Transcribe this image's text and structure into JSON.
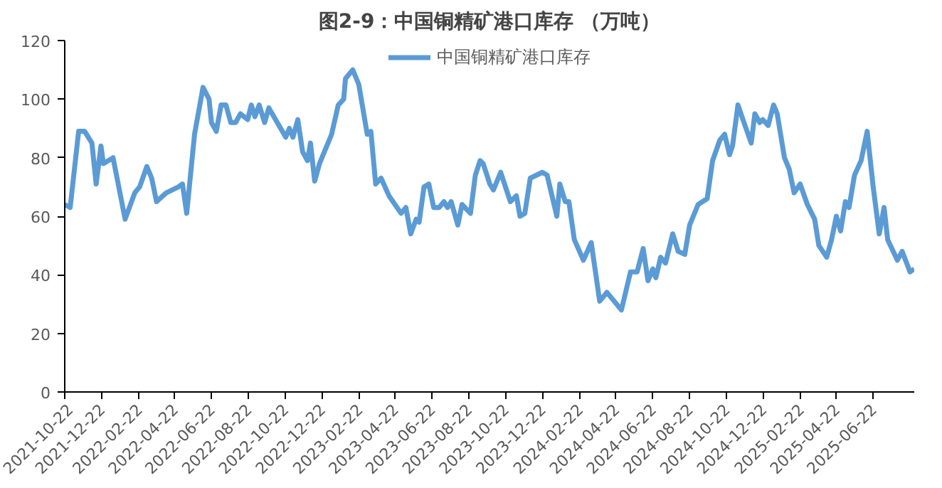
{
  "chart_data": {
    "type": "line",
    "title": "图2-9：中国铜精矿港口库存 （万吨）",
    "x": [
      "2021-10-22",
      "2021-10-31",
      "2021-11-14",
      "2021-11-24",
      "2021-12-06",
      "2021-12-13",
      "2021-12-21",
      "2021-12-25",
      "2022-01-10",
      "2022-01-30",
      "2022-02-15",
      "2022-02-23",
      "2022-03-07",
      "2022-03-15",
      "2022-03-23",
      "2022-04-08",
      "2022-04-28",
      "2022-05-05",
      "2022-05-12",
      "2022-05-25",
      "2022-06-08",
      "2022-06-18",
      "2022-06-22",
      "2022-06-30",
      "2022-07-08",
      "2022-07-16",
      "2022-07-24",
      "2022-08-01",
      "2022-08-09",
      "2022-08-21",
      "2022-08-27",
      "2022-09-02",
      "2022-09-09",
      "2022-09-18",
      "2022-09-25",
      "2022-10-23",
      "2022-10-29",
      "2022-11-04",
      "2022-11-12",
      "2022-11-20",
      "2022-11-28",
      "2022-12-03",
      "2022-12-10",
      "2022-12-18",
      "2023-01-07",
      "2023-01-18",
      "2023-01-27",
      "2023-01-30",
      "2023-02-11",
      "2023-02-21",
      "2023-03-07",
      "2023-03-13",
      "2023-03-21",
      "2023-03-30",
      "2023-04-12",
      "2023-05-02",
      "2023-05-10",
      "2023-05-18",
      "2023-05-27",
      "2023-06-01",
      "2023-06-09",
      "2023-06-17",
      "2023-06-25",
      "2023-07-04",
      "2023-07-12",
      "2023-07-18",
      "2023-07-24",
      "2023-08-04",
      "2023-08-11",
      "2023-08-25",
      "2023-09-02",
      "2023-09-10",
      "2023-09-15",
      "2023-09-26",
      "2023-10-02",
      "2023-10-14",
      "2023-10-30",
      "2023-11-09",
      "2023-11-15",
      "2023-11-23",
      "2023-12-02",
      "2023-12-22",
      "2023-12-30",
      "2024-01-15",
      "2024-01-20",
      "2024-01-29",
      "2024-02-04",
      "2024-02-13",
      "2024-02-28",
      "2024-03-12",
      "2024-03-26",
      "2024-04-07",
      "2024-04-19",
      "2024-05-01",
      "2024-05-16",
      "2024-05-27",
      "2024-06-06",
      "2024-06-14",
      "2024-06-22",
      "2024-06-27",
      "2024-07-05",
      "2024-07-13",
      "2024-07-25",
      "2024-08-03",
      "2024-08-14",
      "2024-08-22",
      "2024-09-05",
      "2024-09-20",
      "2024-09-29",
      "2024-10-11",
      "2024-10-19",
      "2024-10-27",
      "2024-11-01",
      "2024-11-10",
      "2024-11-20",
      "2024-12-02",
      "2024-12-08",
      "2024-12-16",
      "2024-12-21",
      "2024-12-30",
      "2025-01-08",
      "2025-01-14",
      "2025-01-26",
      "2025-02-03",
      "2025-02-11",
      "2025-02-21",
      "2025-03-05",
      "2025-03-17",
      "2025-03-24",
      "2025-04-06",
      "2025-04-14",
      "2025-04-22",
      "2025-04-29",
      "2025-05-07",
      "2025-05-13",
      "2025-05-22",
      "2025-06-02",
      "2025-06-12",
      "2025-06-22",
      "2025-07-02",
      "2025-07-10",
      "2025-07-16",
      "2025-08-01",
      "2025-08-09",
      "2025-08-22",
      "2025-08-29"
    ],
    "series": [
      {
        "name": "中国铜精矿港口库存",
        "color": "#5b9bd5",
        "values": [
          64,
          63,
          89,
          89,
          85,
          71,
          84,
          78,
          80,
          59,
          68,
          70,
          77,
          73,
          65,
          68,
          70,
          71,
          61,
          88,
          104,
          100,
          92,
          89,
          98,
          98,
          92,
          92,
          95,
          93,
          98,
          94,
          98,
          92,
          97,
          87,
          90,
          87,
          93,
          82,
          79,
          85,
          72,
          78,
          88,
          98,
          100,
          107,
          110,
          105,
          88,
          89,
          71,
          73,
          67,
          61,
          63,
          54,
          59,
          58,
          70,
          71,
          63,
          63,
          65,
          63,
          65,
          57,
          64,
          61,
          74,
          79,
          78,
          71,
          69,
          75,
          65,
          67,
          60,
          61,
          73,
          75,
          74,
          60,
          71,
          65,
          65,
          52,
          45,
          51,
          31,
          34,
          31,
          28,
          41,
          41,
          49,
          38,
          42,
          39,
          46,
          44,
          54,
          48,
          47,
          57,
          64,
          66,
          79,
          86,
          88,
          81,
          84,
          98,
          92,
          85,
          95,
          92,
          93,
          91,
          98,
          95,
          80,
          76,
          68,
          71,
          64,
          59,
          50,
          46,
          52,
          60,
          55,
          65,
          63,
          74,
          79,
          89,
          70,
          54,
          63,
          52,
          45,
          48,
          41,
          42
        ]
      }
    ],
    "xlim": [
      "2021-10-22",
      "2025-08-29"
    ],
    "xticks": [
      "2021-10-22",
      "2021-12-22",
      "2022-02-22",
      "2022-04-22",
      "2022-06-22",
      "2022-08-22",
      "2022-10-22",
      "2022-12-22",
      "2023-02-22",
      "2023-04-22",
      "2023-06-22",
      "2023-08-22",
      "2023-10-22",
      "2023-12-22",
      "2024-02-22",
      "2024-04-22",
      "2024-06-22",
      "2024-08-22",
      "2024-10-22",
      "2024-12-22",
      "2025-02-22",
      "2025-04-22",
      "2025-06-22"
    ],
    "ylim": [
      0,
      120
    ],
    "yticks": [
      0,
      20,
      40,
      60,
      80,
      100,
      120
    ],
    "grid": false,
    "legend": "top",
    "line_style": "solid",
    "marker": "none"
  }
}
